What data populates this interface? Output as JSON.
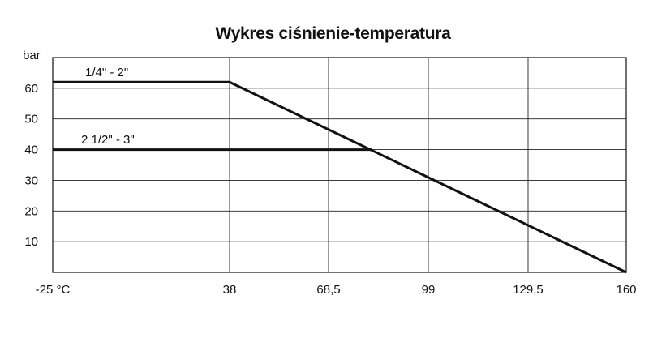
{
  "chart_data": {
    "type": "line",
    "title": "Wykres ciśnienie-temperatura",
    "ylabel": "bar",
    "xlabel": "",
    "x_tick_labels": [
      "-25 °C",
      "38",
      "68,5",
      "99",
      "129,5",
      "160"
    ],
    "x_ticks": [
      -25,
      38,
      68.5,
      99,
      129.5,
      160
    ],
    "y_ticks": [
      10,
      20,
      30,
      40,
      50,
      60
    ],
    "xlim": [
      -25,
      160
    ],
    "ylim": [
      0,
      70
    ],
    "grid": true,
    "line_color": "#111111",
    "series": [
      {
        "name": "1/4\" - 2\"",
        "x": [
          -25,
          38,
          160
        ],
        "y": [
          62,
          62,
          0
        ]
      },
      {
        "name": "2 1/2\" - 3\"",
        "x": [
          -25,
          81.8
        ],
        "y": [
          40,
          40
        ]
      }
    ]
  }
}
